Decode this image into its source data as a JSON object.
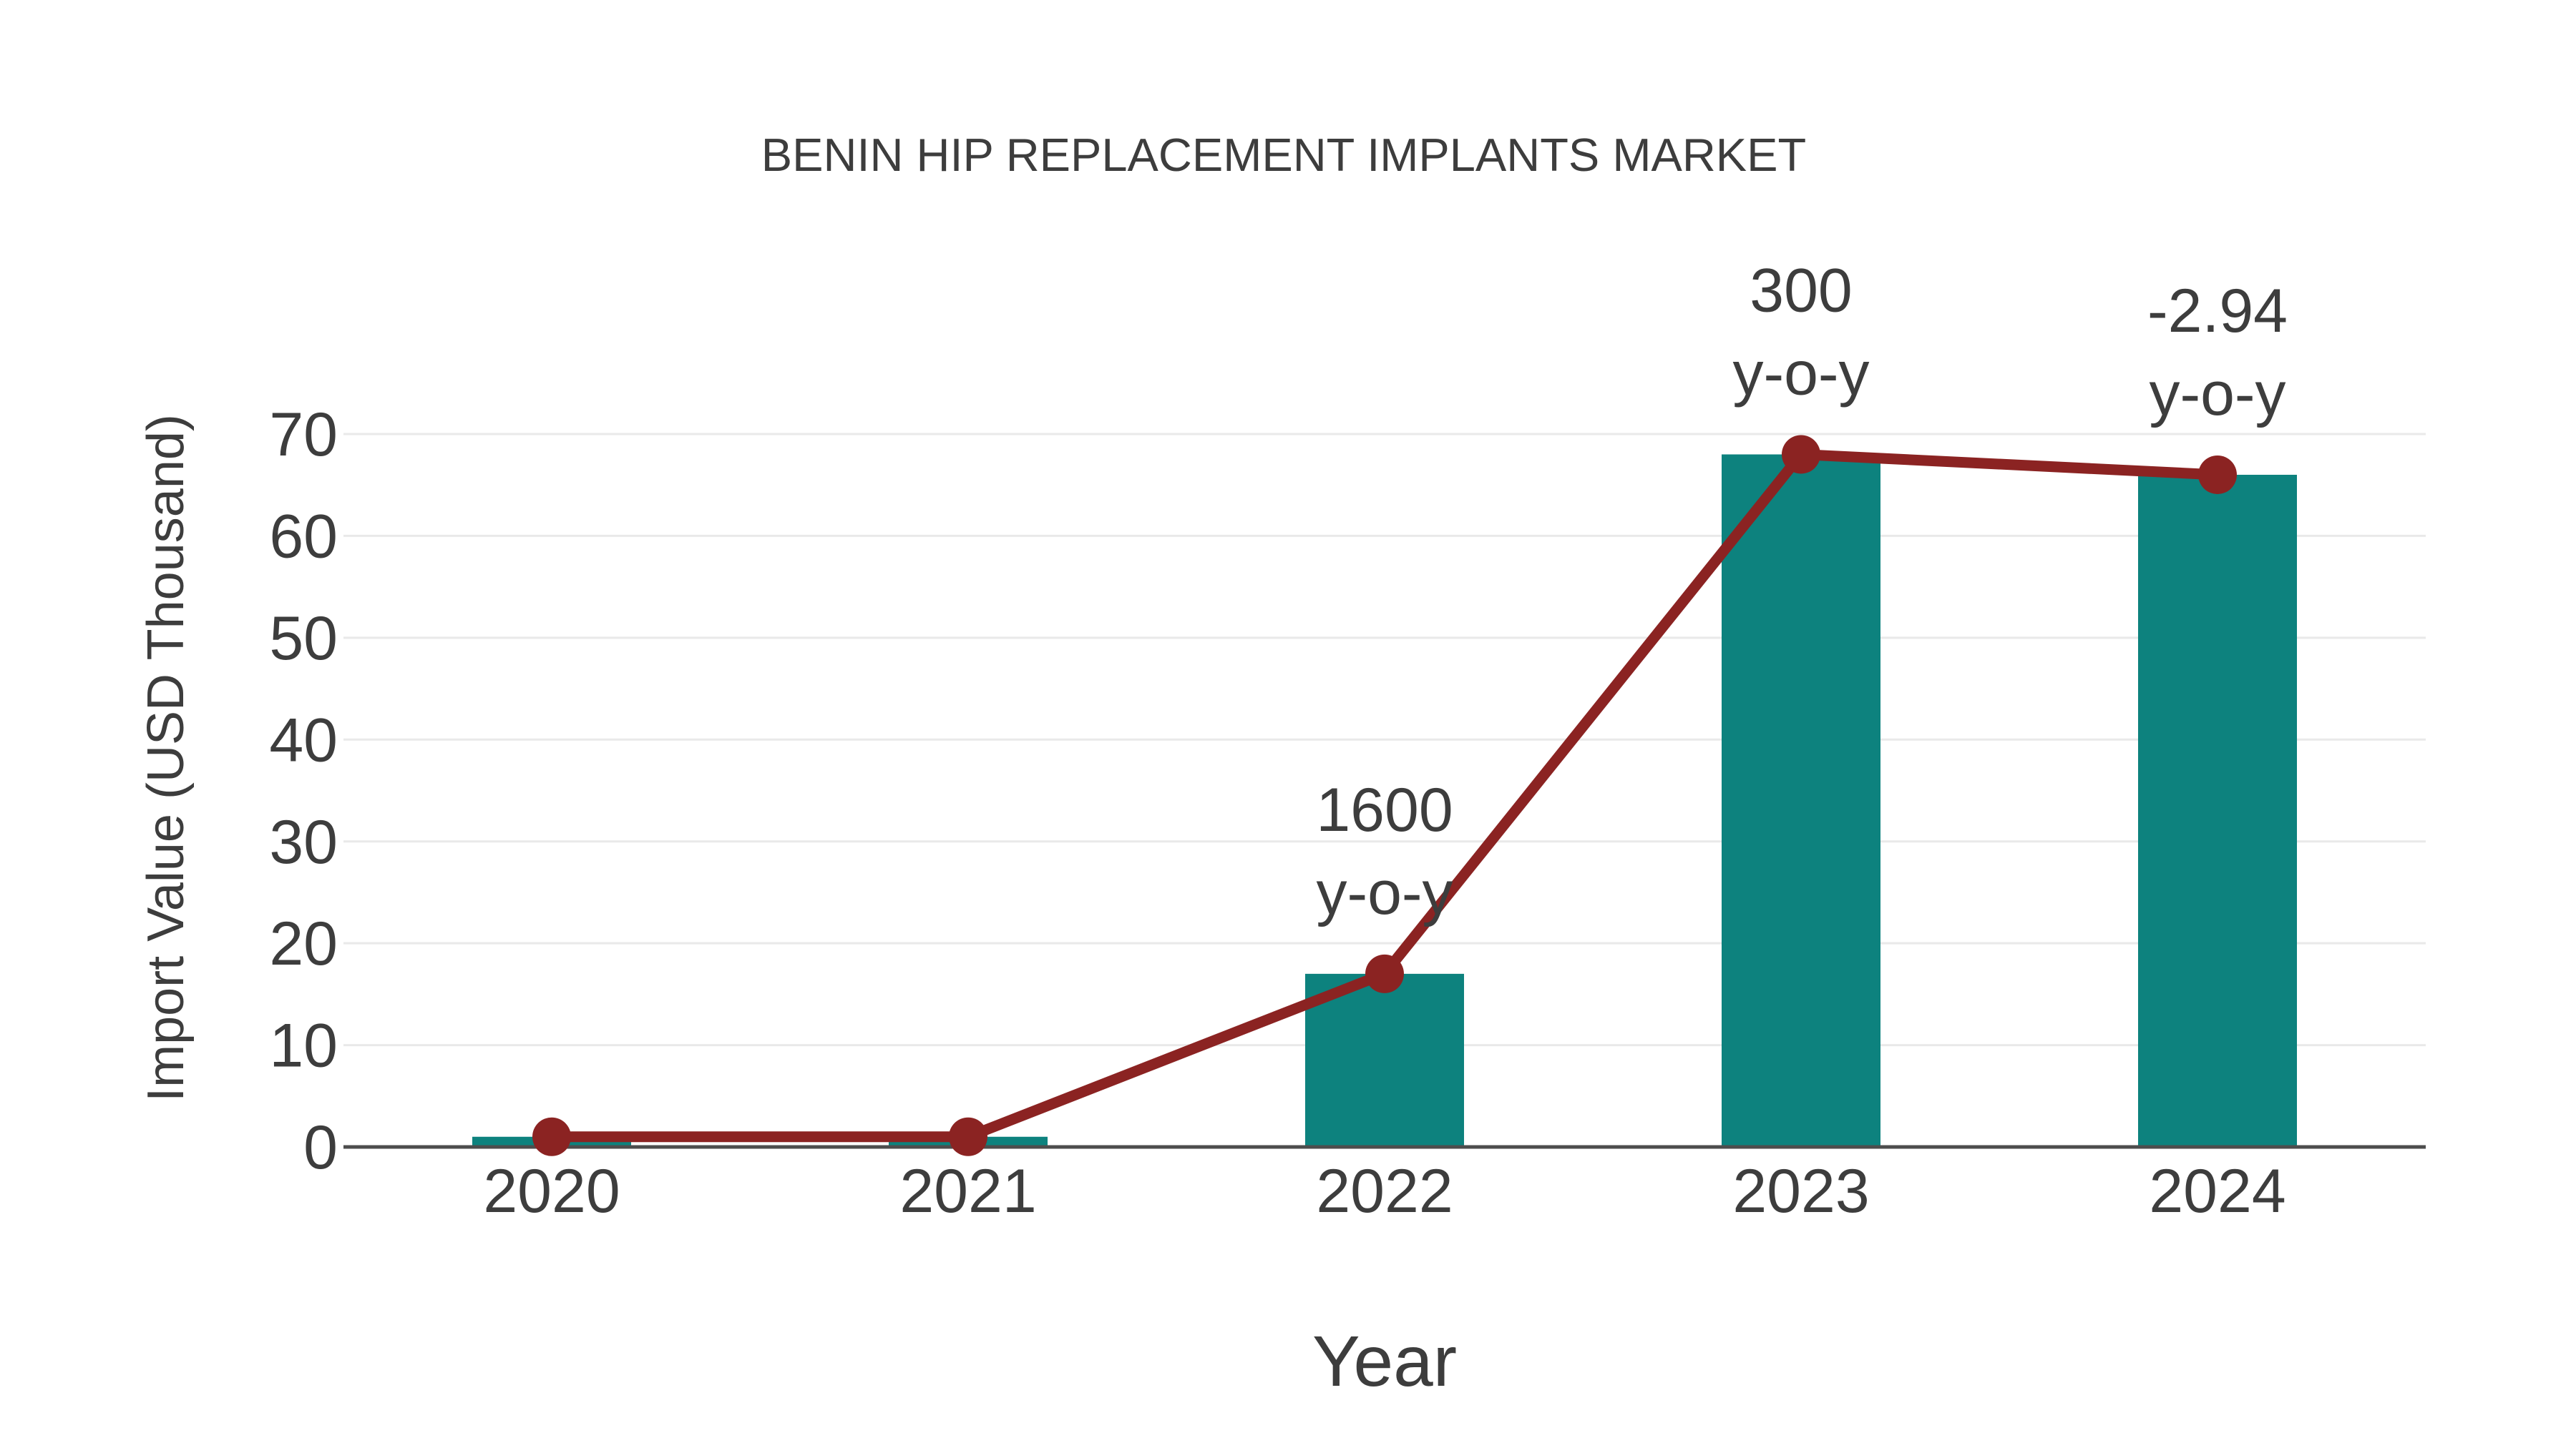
{
  "chart": {
    "title": "BENIN HIP REPLACEMENT IMPLANTS MARKET",
    "ylabel": "Import Value (USD Thousand)",
    "xlabel": "Year"
  },
  "chart_data": {
    "type": "bar",
    "title": "BENIN HIP REPLACEMENT IMPLANTS MARKET",
    "xlabel": "Year",
    "ylabel": "Import Value (USD Thousand)",
    "categories": [
      "2020",
      "2021",
      "2022",
      "2023",
      "2024"
    ],
    "series": [
      {
        "name": "import-value-bars",
        "type": "bar",
        "values": [
          1,
          1,
          17,
          68,
          66
        ]
      },
      {
        "name": "import-value-trend-line",
        "type": "line",
        "values": [
          1,
          1,
          17,
          68,
          66
        ]
      }
    ],
    "annotations": [
      {
        "category": "2022",
        "value_label": "1600",
        "unit_label": "y-o-y"
      },
      {
        "category": "2023",
        "value_label": "300",
        "unit_label": "y-o-y"
      },
      {
        "category": "2024",
        "value_label": "-2.94",
        "unit_label": "y-o-y"
      }
    ],
    "yticks": [
      0,
      10,
      20,
      30,
      40,
      50,
      60,
      70
    ],
    "ylim": [
      0,
      70
    ],
    "grid": true,
    "legend_position": "none",
    "colors": {
      "bar": "#0d827e",
      "line": "#8b2322",
      "marker": "#8b2322",
      "gridline": "#e9e9e9",
      "axis_line": "#4d4d4d",
      "text": "#3d3d3d"
    }
  }
}
